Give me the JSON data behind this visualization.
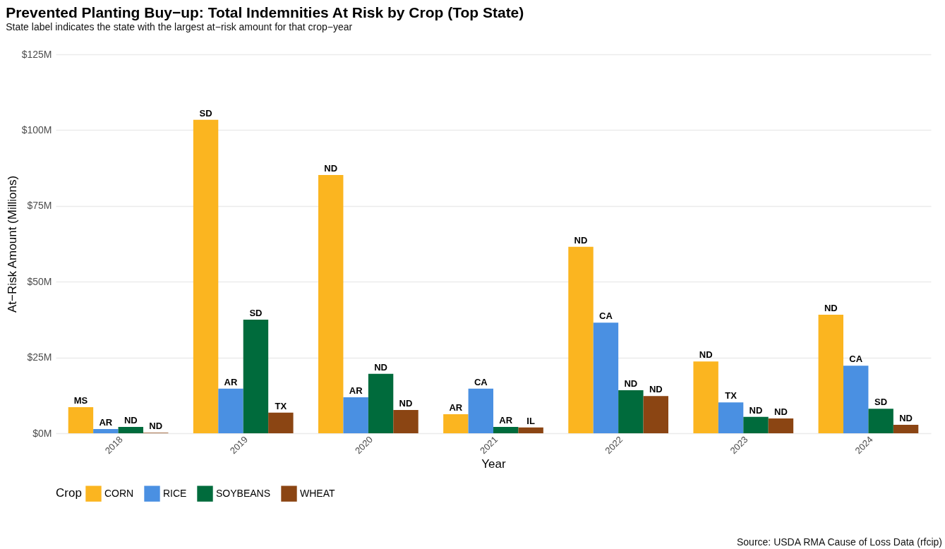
{
  "chart_data": {
    "type": "bar",
    "title": "Prevented Planting Buy−up: Total Indemnities At Risk by Crop (Top State)",
    "subtitle": "State label indicates the state with the largest at−risk amount for that crop−year",
    "xlabel": "Year",
    "ylabel": "At−Risk Amount (Millions)",
    "legend_title": "Crop",
    "categories": [
      "2018",
      "2019",
      "2020",
      "2021",
      "2022",
      "2023",
      "2024"
    ],
    "series": [
      {
        "name": "CORN",
        "color": "#fbb520",
        "values": [
          8.6,
          103.4,
          85.2,
          6.3,
          61.5,
          23.7,
          39.1
        ],
        "value_labels": [
          "MS",
          "SD",
          "ND",
          "AR",
          "ND",
          "ND",
          "ND"
        ]
      },
      {
        "name": "RICE",
        "color": "#4a90e2",
        "values": [
          1.4,
          14.7,
          11.9,
          14.7,
          36.5,
          10.2,
          22.3
        ],
        "value_labels": [
          "AR",
          "AR",
          "AR",
          "CA",
          "CA",
          "TX",
          "CA"
        ]
      },
      {
        "name": "SOYBEANS",
        "color": "#006b3c",
        "values": [
          2.1,
          37.5,
          19.6,
          2.1,
          14.2,
          5.4,
          8.1
        ],
        "value_labels": [
          "ND",
          "SD",
          "ND",
          "AR",
          "ND",
          "ND",
          "SD"
        ]
      },
      {
        "name": "WHEAT",
        "color": "#8b4513",
        "values": [
          0.2,
          6.8,
          7.7,
          1.9,
          12.3,
          4.9,
          2.8
        ],
        "value_labels": [
          "ND",
          "TX",
          "ND",
          "IL",
          "ND",
          "ND",
          "ND"
        ]
      }
    ],
    "ylim": [
      0,
      125
    ],
    "yticks": [
      {
        "value": 0,
        "label": "$0M"
      },
      {
        "value": 25,
        "label": "$25M"
      },
      {
        "value": 50,
        "label": "$50M"
      },
      {
        "value": 75,
        "label": "$75M"
      },
      {
        "value": 100,
        "label": "$100M"
      },
      {
        "value": 125,
        "label": "$125M"
      }
    ],
    "grid": "y",
    "legend": "bottom",
    "annotations": [
      "Source: USDA RMA Cause of Loss Data (rfcip)"
    ]
  }
}
